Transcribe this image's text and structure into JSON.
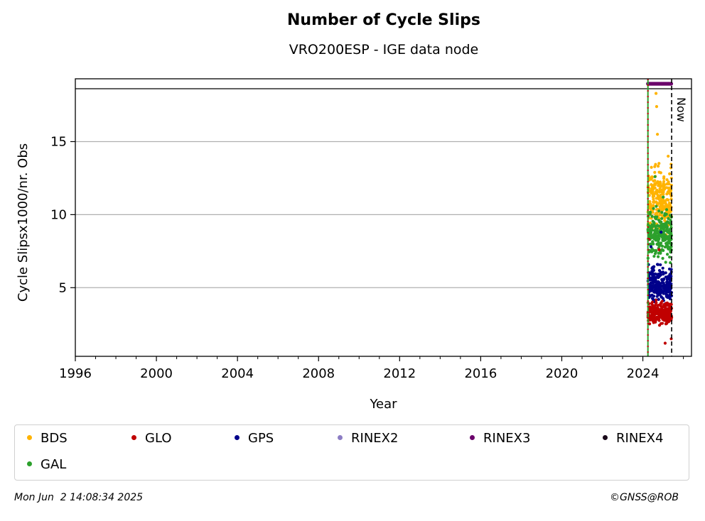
{
  "chart_data": {
    "type": "scatter",
    "title": "Number of Cycle Slips",
    "subtitle": "VRO200ESP - IGE data node",
    "xlabel": "Year",
    "ylabel": "Cycle Slipsx1000/nr. Obs",
    "xlim": [
      1996,
      2026.4
    ],
    "ylim": [
      0.3,
      19.3
    ],
    "x_ticks": [
      1996,
      2000,
      2004,
      2008,
      2012,
      2016,
      2020,
      2024
    ],
    "y_ticks": [
      5,
      10,
      15
    ],
    "grid": "horizontal",
    "now_marker": {
      "label": "Now",
      "x": 2025.42
    },
    "start_marker_x": 2024.25,
    "legend_placement": "bottom",
    "series": [
      {
        "name": "BDS",
        "color": "#ffb300",
        "x_range": [
          2024.25,
          2025.42
        ],
        "y_center": 11.0,
        "y_spread": 2.3,
        "outliers": [
          [
            2024.65,
            18.3
          ],
          [
            2024.68,
            17.4
          ],
          [
            2024.72,
            15.5
          ],
          [
            2025.25,
            14.0
          ]
        ]
      },
      {
        "name": "GLO",
        "color": "#c00000",
        "x_range": [
          2024.25,
          2025.42
        ],
        "y_center": 3.3,
        "y_spread": 0.8,
        "outliers": [
          [
            2024.3,
            8.3
          ],
          [
            2024.8,
            7.6
          ],
          [
            2025.1,
            1.2
          ],
          [
            2025.4,
            1.5
          ]
        ]
      },
      {
        "name": "GPS",
        "color": "#00008b",
        "x_range": [
          2024.25,
          2025.42
        ],
        "y_center": 5.2,
        "y_spread": 1.2,
        "outliers": [
          [
            2024.4,
            7.8
          ],
          [
            2024.9,
            8.8
          ]
        ]
      },
      {
        "name": "RINEX2",
        "color": "#8c7dc4",
        "x_range": [],
        "y_center": null,
        "y_spread": null,
        "outliers": []
      },
      {
        "name": "RINEX3",
        "color": "#6b006b",
        "x_range": [
          2024.25,
          2025.42
        ],
        "y_center": 19.5,
        "y_spread": 0.0,
        "outliers": []
      },
      {
        "name": "RINEX4",
        "color": "#1a0a1a",
        "x_range": [],
        "y_center": null,
        "y_spread": null,
        "outliers": []
      },
      {
        "name": "GAL",
        "color": "#2ca02c",
        "x_range": [
          2024.25,
          2025.42
        ],
        "y_center": 8.6,
        "y_spread": 1.6,
        "outliers": [
          [
            2024.6,
            12.6
          ],
          [
            2025.0,
            11.2
          ]
        ]
      }
    ]
  },
  "legend": [
    {
      "label": "BDS",
      "color": "#ffb300"
    },
    {
      "label": "GLO",
      "color": "#c00000"
    },
    {
      "label": "GPS",
      "color": "#00008b"
    },
    {
      "label": "RINEX2",
      "color": "#8c7dc4"
    },
    {
      "label": "RINEX3",
      "color": "#6b006b"
    },
    {
      "label": "RINEX4",
      "color": "#1a0a1a"
    },
    {
      "label": "GAL",
      "color": "#2ca02c"
    }
  ],
  "footer": {
    "date": "Mon Jun  2 14:08:34 2025",
    "credit": "©GNSS@ROB"
  }
}
